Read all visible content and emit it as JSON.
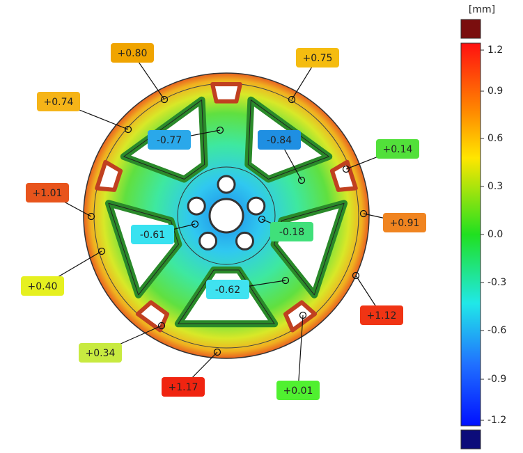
{
  "scale": {
    "unit": "[mm]",
    "ticks": [
      "1.2",
      "0.9",
      "0.6",
      "0.3",
      "0.0",
      "-0.3",
      "-0.6",
      "-0.9",
      "-1.2"
    ]
  },
  "callouts": [
    {
      "label": "+0.80",
      "color": "#f0a400"
    },
    {
      "label": "+0.75",
      "color": "#f5bc10"
    },
    {
      "label": "+0.74",
      "color": "#f5b418"
    },
    {
      "label": "-0.77",
      "color": "#2aa8ea"
    },
    {
      "label": "-0.84",
      "color": "#1f8fe2"
    },
    {
      "label": "+0.14",
      "color": "#52e03a"
    },
    {
      "label": "+1.01",
      "color": "#e8541c"
    },
    {
      "label": "+0.91",
      "color": "#f08420"
    },
    {
      "label": "-0.61",
      "color": "#38e2f0"
    },
    {
      "label": "-0.18",
      "color": "#40e07a"
    },
    {
      "label": "+0.40",
      "color": "#e6f020"
    },
    {
      "label": "-0.62",
      "color": "#40e2f0"
    },
    {
      "label": "+1.12",
      "color": "#f03414"
    },
    {
      "label": "+0.34",
      "color": "#c8ea40"
    },
    {
      "label": "+1.17",
      "color": "#f02410"
    },
    {
      "label": "+0.01",
      "color": "#50f030"
    }
  ]
}
